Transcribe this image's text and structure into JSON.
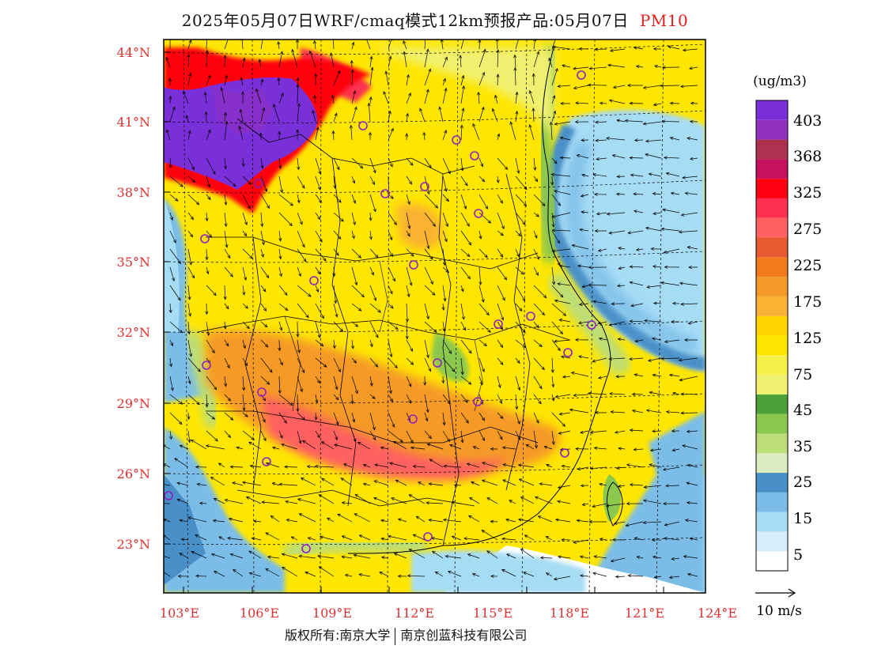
{
  "title": {
    "text": "2025年05月07日WRF/cmaq模式12km预报产品:05月07日",
    "variable": "PM10"
  },
  "axes": {
    "lat_labels": [
      "44°N",
      "41°N",
      "38°N",
      "35°N",
      "32°N",
      "29°N",
      "26°N",
      "23°N"
    ],
    "lon_labels": [
      "103°E",
      "106°E",
      "109°E",
      "112°E",
      "115°E",
      "118°E",
      "121°E",
      "124°E"
    ],
    "label_color": "#e03030"
  },
  "legend": {
    "unit": "(ug/m3)",
    "labels": [
      "403",
      "368",
      "325",
      "275",
      "225",
      "175",
      "125",
      "75",
      "45",
      "35",
      "25",
      "15",
      "5"
    ],
    "colors": [
      "#ffffff",
      "#d6eefa",
      "#a7dcf5",
      "#7bbde8",
      "#4a90c8",
      "#dcecc0",
      "#bcdd78",
      "#8cc84e",
      "#4ea03a",
      "#f0f070",
      "#f4f04a",
      "#ffe600",
      "#ffd400",
      "#f9b233",
      "#f59a28",
      "#f07a1c",
      "#e85a32",
      "#ff6060",
      "#ff3050",
      "#ff0010",
      "#c81060",
      "#b03050",
      "#9030c0",
      "#7a30d8"
    ]
  },
  "wind_scale": {
    "label": "10 m/s"
  },
  "footer": {
    "left": "版权所有:南京大学",
    "right": "南京创蓝科技有限公司"
  },
  "colors": {
    "plume_purple": "#8a2be2",
    "highway_red": "#ff1a40",
    "sea_blue": "#4a90c8"
  }
}
